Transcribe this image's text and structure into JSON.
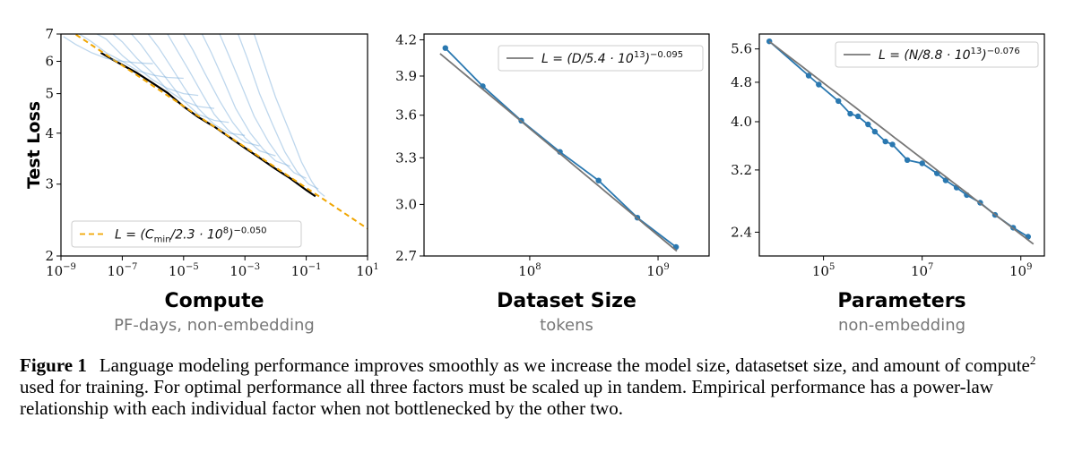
{
  "chart_data": [
    {
      "type": "line",
      "xlabel": "Compute",
      "xsublabel": "PF-days, non-embedding",
      "ylabel": "Test Loss",
      "x_scale": "log",
      "y_scale": "log",
      "xlim": [
        1e-09,
        10
      ],
      "ylim": [
        2,
        7
      ],
      "x_ticks": [
        {
          "value": 1e-09,
          "base": "10",
          "exp": "−9"
        },
        {
          "value": 1e-07,
          "base": "10",
          "exp": "−7"
        },
        {
          "value": 1e-05,
          "base": "10",
          "exp": "−5"
        },
        {
          "value": 0.001,
          "base": "10",
          "exp": "−3"
        },
        {
          "value": 0.1,
          "base": "10",
          "exp": "−1"
        },
        {
          "value": 10,
          "base": "10",
          "exp": "1"
        }
      ],
      "y_ticks": [
        {
          "value": 2,
          "label": "2"
        },
        {
          "value": 3,
          "label": "3"
        },
        {
          "value": 4,
          "label": "4"
        },
        {
          "value": 5,
          "label": "5"
        },
        {
          "value": 6,
          "label": "6"
        },
        {
          "value": 7,
          "label": "7"
        }
      ],
      "legend": {
        "placement": "lower-left",
        "entries": [
          {
            "main": "L = (C",
            "sub": "min",
            "rest": "/2.3 · 10",
            "exp1": "8",
            "close": ")",
            "exp2": "−0.050"
          }
        ]
      },
      "series": [
        {
          "role": "frontier",
          "color": "#000000",
          "x": [
            2e-08,
            5e-08,
            1e-07,
            3e-07,
            1e-06,
            3e-06,
            1e-05,
            3e-05,
            0.0001,
            0.0003,
            0.001,
            0.003,
            0.01,
            0.03,
            0.1,
            0.2
          ],
          "y": [
            6.3,
            6.05,
            5.88,
            5.62,
            5.3,
            5.02,
            4.65,
            4.38,
            4.15,
            3.92,
            3.68,
            3.48,
            3.27,
            3.1,
            2.9,
            2.8
          ]
        },
        {
          "role": "fit",
          "color": "#f0a500",
          "dashed": true,
          "coefficient": 230000000.0,
          "exponent": -0.05,
          "x_range": [
            1e-09,
            10
          ]
        },
        {
          "role": "training-curves",
          "color": "#6fa6d6",
          "curves": [
            {
              "x": [
                1.2e-09,
                3e-09,
                1e-08,
                3e-08,
                1e-07,
                3e-07,
                1e-06
              ],
              "y": [
                6.9,
                6.6,
                6.3,
                6.1,
                6.0,
                5.95,
                5.92
              ]
            },
            {
              "x": [
                4e-09,
                1e-08,
                3e-08,
                1e-07,
                3e-07,
                1e-06,
                3e-06,
                1e-05
              ],
              "y": [
                7.0,
                6.7,
                6.3,
                6.0,
                5.7,
                5.55,
                5.48,
                5.45
              ]
            },
            {
              "x": [
                1.5e-08,
                3e-08,
                1e-07,
                3e-07,
                1e-06,
                3e-06,
                1e-05,
                3e-05
              ],
              "y": [
                7.0,
                6.8,
                6.2,
                5.8,
                5.4,
                5.15,
                5.0,
                4.95
              ]
            },
            {
              "x": [
                5e-08,
                1e-07,
                3e-07,
                1e-06,
                3e-06,
                1e-05,
                3e-05,
                0.0001
              ],
              "y": [
                7.0,
                6.7,
                6.1,
                5.6,
                5.1,
                4.8,
                4.65,
                4.6
              ]
            },
            {
              "x": [
                2e-07,
                4e-07,
                1e-06,
                3e-06,
                1e-05,
                3e-05,
                0.0001,
                0.0003
              ],
              "y": [
                7.0,
                6.6,
                6.0,
                5.4,
                4.8,
                4.45,
                4.3,
                4.25
              ]
            },
            {
              "x": [
                7e-07,
                1.5e-06,
                4e-06,
                1e-05,
                3e-05,
                0.0001,
                0.0003,
                0.001
              ],
              "y": [
                7.0,
                6.5,
                5.8,
                5.2,
                4.6,
                4.2,
                4.0,
                3.95
              ]
            },
            {
              "x": [
                3e-06,
                6e-06,
                1.5e-05,
                4e-05,
                0.0001,
                0.0003,
                0.001,
                0.003
              ],
              "y": [
                7.0,
                6.4,
                5.7,
                5.0,
                4.45,
                4.05,
                3.8,
                3.72
              ]
            },
            {
              "x": [
                1e-05,
                2e-05,
                5e-05,
                0.00015,
                0.0004,
                0.001,
                0.003,
                0.01
              ],
              "y": [
                7.0,
                6.4,
                5.6,
                4.8,
                4.25,
                3.9,
                3.62,
                3.52
              ]
            },
            {
              "x": [
                4e-05,
                8e-05,
                0.0002,
                0.0005,
                0.0015,
                0.004,
                0.01,
                0.03
              ],
              "y": [
                7.0,
                6.3,
                5.4,
                4.6,
                4.0,
                3.65,
                3.42,
                3.32
              ]
            },
            {
              "x": [
                0.00015,
                0.0003,
                0.0008,
                0.002,
                0.006,
                0.015,
                0.04,
                0.1
              ],
              "y": [
                7.0,
                6.2,
                5.2,
                4.4,
                3.8,
                3.45,
                3.2,
                3.1
              ]
            },
            {
              "x": [
                0.0006,
                0.0012,
                0.003,
                0.008,
                0.02,
                0.05,
                0.12,
                0.25
              ],
              "y": [
                7.0,
                6.1,
                5.0,
                4.2,
                3.6,
                3.22,
                3.0,
                2.92
              ]
            },
            {
              "x": [
                0.002,
                0.004,
                0.01,
                0.03,
                0.07,
                0.15,
                0.25,
                0.4
              ],
              "y": [
                7.0,
                6.0,
                4.9,
                4.0,
                3.4,
                3.05,
                2.88,
                2.8
              ]
            }
          ]
        }
      ]
    },
    {
      "type": "line",
      "xlabel": "Dataset Size",
      "xsublabel": "tokens",
      "ylabel": "",
      "x_scale": "log",
      "y_scale": "log",
      "xlim": [
        15000000.0,
        2500000000.0
      ],
      "ylim": [
        2.7,
        4.25
      ],
      "x_ticks": [
        {
          "value": 100000000.0,
          "base": "10",
          "exp": "8"
        },
        {
          "value": 1000000000.0,
          "base": "10",
          "exp": "9"
        }
      ],
      "y_ticks": [
        {
          "value": 2.7,
          "label": "2.7"
        },
        {
          "value": 3.0,
          "label": "3.0"
        },
        {
          "value": 3.3,
          "label": "3.3"
        },
        {
          "value": 3.6,
          "label": "3.6"
        },
        {
          "value": 3.9,
          "label": "3.9"
        },
        {
          "value": 4.2,
          "label": "4.2"
        }
      ],
      "legend": {
        "placement": "top-right",
        "entries": [
          {
            "main": "L = (D",
            "sub": "",
            "rest": "/5.4 · 10",
            "exp1": "13",
            "close": ")",
            "exp2": "−0.095"
          }
        ]
      },
      "series": [
        {
          "role": "data",
          "color": "#2a78b0",
          "markers": true,
          "x": [
            22000000.0,
            43000000.0,
            86000000.0,
            172000000.0,
            344000000.0,
            690000000.0,
            1380000000.0
          ],
          "y": [
            4.13,
            3.82,
            3.56,
            3.34,
            3.15,
            2.92,
            2.75
          ]
        },
        {
          "role": "fit",
          "color": "#777777",
          "coefficient": 54000000000000.0,
          "exponent": -0.095,
          "x_range": [
            20000000.0,
            1400000000.0
          ]
        }
      ]
    },
    {
      "type": "line",
      "xlabel": "Parameters",
      "xsublabel": "non-embedding",
      "ylabel": "",
      "x_scale": "log",
      "y_scale": "log",
      "xlim": [
        5000.0,
        3000000000.0
      ],
      "ylim": [
        2.15,
        6.0
      ],
      "x_ticks": [
        {
          "value": 100000.0,
          "base": "10",
          "exp": "5"
        },
        {
          "value": 10000000.0,
          "base": "10",
          "exp": "7"
        },
        {
          "value": 1000000000.0,
          "base": "10",
          "exp": "9"
        }
      ],
      "y_ticks": [
        {
          "value": 2.4,
          "label": "2.4"
        },
        {
          "value": 3.2,
          "label": "3.2"
        },
        {
          "value": 4.0,
          "label": "4.0"
        },
        {
          "value": 4.8,
          "label": "4.8"
        },
        {
          "value": 5.6,
          "label": "5.6"
        }
      ],
      "legend": {
        "placement": "top-right",
        "entries": [
          {
            "main": "L = (N",
            "sub": "",
            "rest": "/8.8 · 10",
            "exp1": "13",
            "close": ")",
            "exp2": "−0.076"
          }
        ]
      },
      "series": [
        {
          "role": "data",
          "color": "#2a78b0",
          "markers": true,
          "x": [
            8000.0,
            50000.0,
            80000.0,
            200000.0,
            350000.0,
            500000.0,
            800000.0,
            1100000.0,
            1800000.0,
            2500000.0,
            5000000.0,
            10000000.0,
            20000000.0,
            30000000.0,
            50000000.0,
            80000000.0,
            150000000.0,
            300000000.0,
            700000000.0,
            1400000000.0
          ],
          "y": [
            5.8,
            4.95,
            4.75,
            4.4,
            4.15,
            4.1,
            3.95,
            3.82,
            3.65,
            3.6,
            3.35,
            3.3,
            3.15,
            3.05,
            2.95,
            2.85,
            2.75,
            2.6,
            2.45,
            2.35
          ]
        },
        {
          "role": "fit",
          "color": "#777777",
          "coefficient": 88000000000000.0,
          "exponent": -0.076,
          "x_range": [
            8000.0,
            1800000000.0
          ]
        }
      ]
    }
  ],
  "caption": {
    "label": "Figure 1",
    "text_before_sup": "Language modeling performance improves smoothly as we increase the model size, datasetset size, and amount of compute",
    "sup": "2",
    "text_after_sup": " used for training. For optimal performance all three factors must be scaled up in tandem. Empirical performance has a power-law relationship with each individual factor when not bottlenecked by the other two."
  }
}
